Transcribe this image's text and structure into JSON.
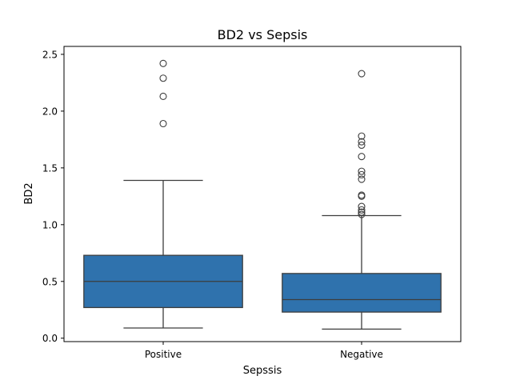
{
  "chart_data": {
    "type": "box",
    "title": "BD2 vs Sepsis",
    "xlabel": "Sepssis",
    "ylabel": "BD2",
    "categories": [
      "Positive",
      "Negative"
    ],
    "ylim": [
      -0.03,
      2.57
    ],
    "yticks": [
      0.0,
      0.5,
      1.0,
      1.5,
      2.0,
      2.5
    ],
    "ytick_labels": [
      "0.0",
      "0.5",
      "1.0",
      "1.5",
      "2.0",
      "2.5"
    ],
    "box_color": "#2f72ad",
    "line_color": "#3d3d3d",
    "series": [
      {
        "category": "Positive",
        "whisker_low": 0.09,
        "q1": 0.27,
        "median": 0.5,
        "q3": 0.73,
        "whisker_high": 1.39,
        "outliers": [
          1.89,
          2.13,
          2.29,
          2.42
        ]
      },
      {
        "category": "Negative",
        "whisker_low": 0.08,
        "q1": 0.23,
        "median": 0.34,
        "q3": 0.57,
        "whisker_high": 1.08,
        "outliers": [
          1.09,
          1.11,
          1.13,
          1.16,
          1.25,
          1.26,
          1.4,
          1.44,
          1.47,
          1.6,
          1.7,
          1.73,
          1.78,
          2.33
        ]
      }
    ]
  }
}
